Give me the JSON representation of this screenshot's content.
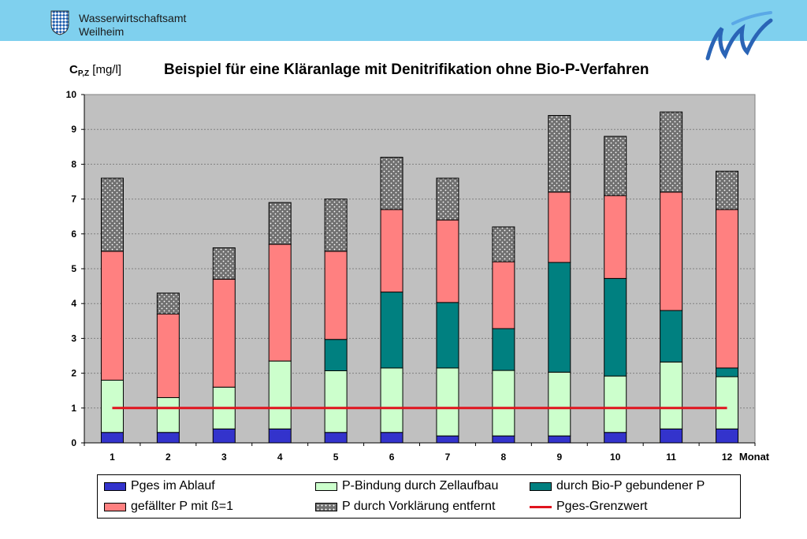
{
  "header": {
    "org_line1": "Wasserwirtschaftsamt",
    "org_line2": "Weilheim",
    "crest_icon": "bavarian-lozenge-crest-icon",
    "logo_icon": "water-w-logo-icon"
  },
  "colors": {
    "header_bg": "#7fd0ee",
    "plot_bg": "#c0c0c0",
    "grid": "#808080",
    "limit_line": "#e0141e"
  },
  "chart_data": {
    "type": "bar",
    "stacked": true,
    "title": "Beispiel für eine Kläranlage mit Denitrifikation ohne Bio-P-Verfahren",
    "ylabel_main": "C",
    "ylabel_sub": "P,Z",
    "ylabel_unit": "[mg/l]",
    "xlabel": "Monat",
    "categories": [
      "1",
      "2",
      "3",
      "4",
      "5",
      "6",
      "7",
      "8",
      "9",
      "10",
      "11",
      "12"
    ],
    "ylim": [
      0,
      10
    ],
    "yticks": [
      "0",
      "1",
      "2",
      "3",
      "4",
      "5",
      "6",
      "7",
      "8",
      "9",
      "10"
    ],
    "grid": true,
    "legend_position": "bottom",
    "series": [
      {
        "name": "Pges im Ablauf",
        "color": "#3333cc",
        "pattern": "solid",
        "values": [
          0.3,
          0.3,
          0.4,
          0.4,
          0.3,
          0.3,
          0.2,
          0.2,
          0.2,
          0.3,
          0.4,
          0.4
        ]
      },
      {
        "name": "P-Bindung durch Zellaufbau",
        "color": "#ccffcc",
        "pattern": "solid",
        "values": [
          1.5,
          1.0,
          1.2,
          1.95,
          1.77,
          1.85,
          1.95,
          1.88,
          1.83,
          1.62,
          1.92,
          1.5
        ]
      },
      {
        "name": "durch Bio-P gebundener P",
        "color": "#008080",
        "pattern": "solid",
        "values": [
          0,
          0,
          0,
          0,
          0.9,
          2.18,
          1.88,
          1.2,
          3.15,
          2.8,
          1.48,
          0.25
        ]
      },
      {
        "name": "gefällter P mit ß=1",
        "color": "#ff8080",
        "pattern": "solid",
        "values": [
          3.7,
          2.4,
          3.1,
          3.35,
          2.53,
          2.37,
          2.37,
          1.92,
          2.02,
          2.38,
          3.4,
          4.55
        ]
      },
      {
        "name": "P durch Vorklärung entfernt",
        "color": "#808080",
        "pattern": "dots",
        "values": [
          2.1,
          0.6,
          0.9,
          1.2,
          1.5,
          1.5,
          1.2,
          1.0,
          2.2,
          1.7,
          2.3,
          1.1
        ]
      }
    ],
    "limit_line": {
      "name": "Pges-Grenzwert",
      "value": 1,
      "color": "#e0141e"
    }
  }
}
